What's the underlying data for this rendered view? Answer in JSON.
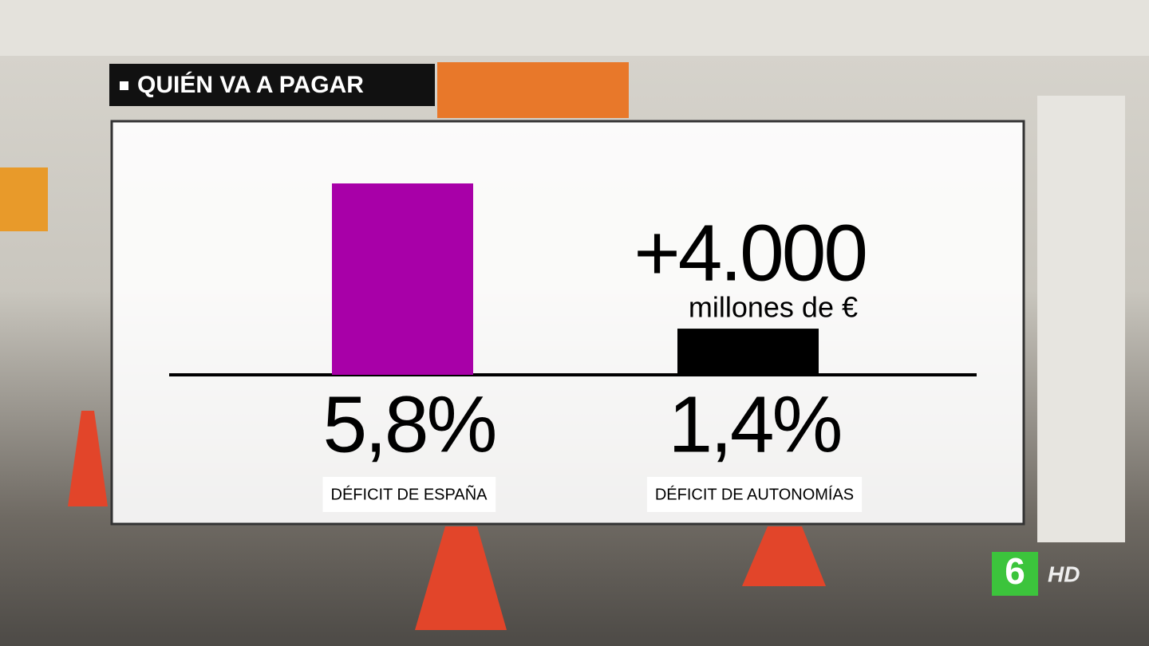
{
  "chart_data": {
    "type": "bar",
    "title": "QUIÉN VA A PAGAR",
    "categories": [
      "DÉFICIT DE ESPAÑA",
      "DÉFICIT DE AUTONOMÍAS"
    ],
    "values": [
      5.8,
      1.4
    ],
    "value_labels": [
      "5,8%",
      "1,4%"
    ],
    "colors": [
      "#a800a8",
      "#000000"
    ],
    "ylim": [
      0,
      5.8
    ],
    "annotations": [
      "+4.000",
      "millones de €"
    ]
  },
  "logo": {
    "channel": "6",
    "quality": "HD"
  }
}
